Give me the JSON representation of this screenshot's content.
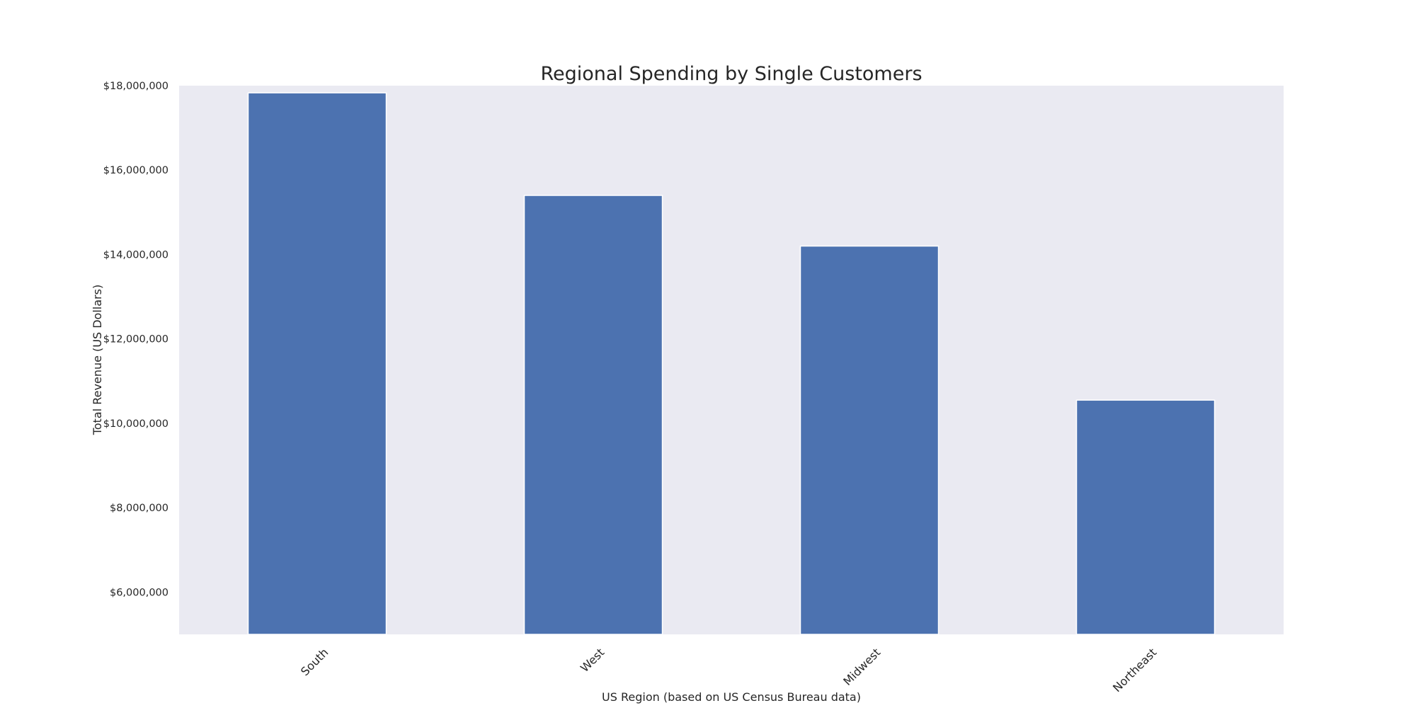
{
  "chart_data": {
    "type": "bar",
    "title": "Regional Spending by Single Customers",
    "xlabel": "US Region (based on US Census Bureau data)",
    "ylabel": "Total Revenue (US Dollars)",
    "categories": [
      "South",
      "West",
      "Midwest",
      "Northeast"
    ],
    "values": [
      17830000,
      15400000,
      14200000,
      10550000
    ],
    "ylim": [
      5000000,
      18000000
    ],
    "yticks": [
      6000000,
      8000000,
      10000000,
      12000000,
      14000000,
      16000000,
      18000000
    ],
    "ytick_labels": [
      "$6,000,000",
      "$8,000,000",
      "$10,000,000",
      "$12,000,000",
      "$14,000,000",
      "$16,000,000",
      "$18,000,000"
    ],
    "grid": false,
    "legend": false,
    "colors": {
      "bar": "#4c72b0",
      "plot_background": "#eaeaf2",
      "bar_edge": "#ffffff"
    }
  }
}
